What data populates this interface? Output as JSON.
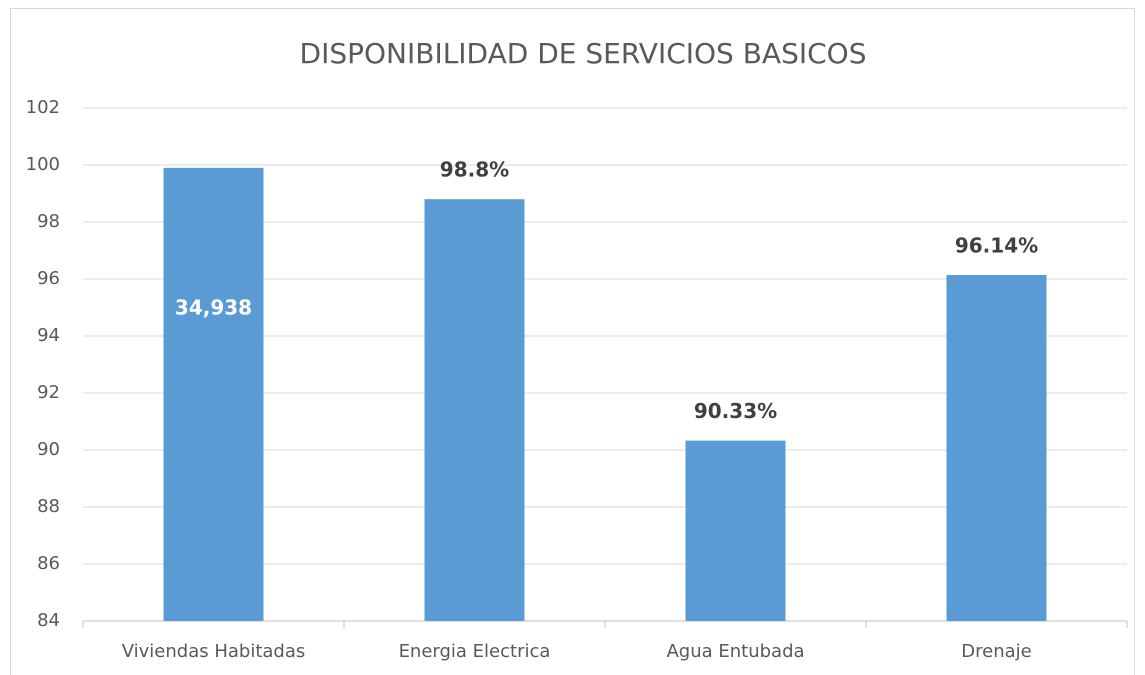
{
  "chart_data": {
    "type": "bar",
    "title": "DISPONIBILIDAD DE SERVICIOS BASICOS",
    "categories": [
      "Viviendas Habitadas",
      "Energia Electrica",
      "Agua Entubada",
      "Drenaje"
    ],
    "values": [
      99.9,
      98.8,
      90.33,
      96.14
    ],
    "value_labels": [
      null,
      "98.8%",
      "90.33%",
      "96.14%"
    ],
    "annotation": "34,938",
    "color": "#5b9bd5",
    "ylim": [
      84,
      102
    ],
    "yticks": [
      84,
      86,
      88,
      90,
      92,
      94,
      96,
      98,
      100,
      102
    ],
    "grid": true
  }
}
